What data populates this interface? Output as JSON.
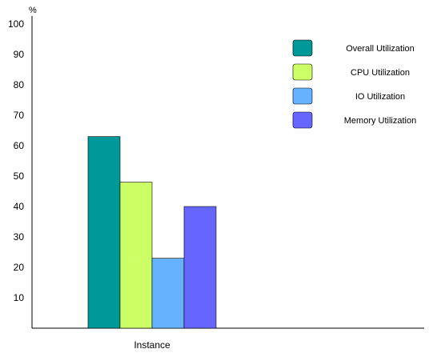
{
  "chart_data": {
    "type": "bar",
    "ylabel": "%",
    "xlabel": "",
    "categories": [
      "Instance"
    ],
    "ylim": [
      0,
      100
    ],
    "yticks": [
      100,
      90,
      80,
      70,
      60,
      50,
      40,
      30,
      20,
      10
    ],
    "series": [
      {
        "name": "Overall Utilization",
        "values": [
          63
        ],
        "color": "#009999"
      },
      {
        "name": "CPU Utilization",
        "values": [
          48
        ],
        "color": "#CCFF66"
      },
      {
        "name": "IO Utilization",
        "values": [
          23
        ],
        "color": "#66B2FF"
      },
      {
        "name": "Memory Utilization",
        "values": [
          40
        ],
        "color": "#6666FF"
      }
    ],
    "grid": false,
    "legend_position": "top-right"
  }
}
